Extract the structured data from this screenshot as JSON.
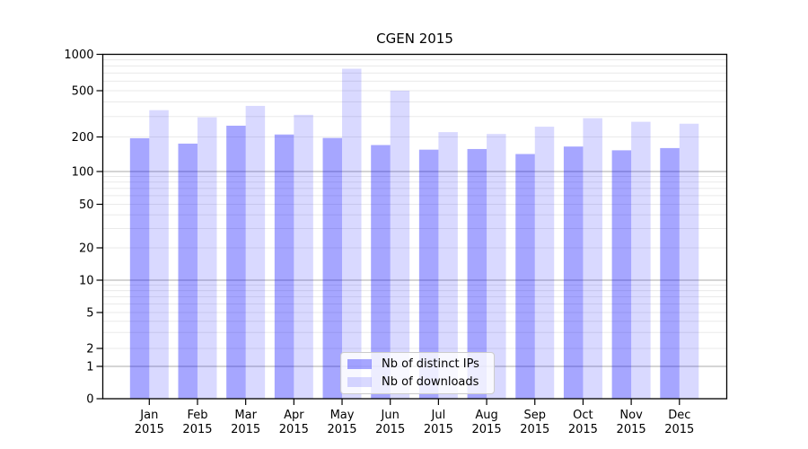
{
  "chart_data": {
    "type": "bar",
    "title": "CGEN 2015",
    "categories": [
      "Jan",
      "Feb",
      "Mar",
      "Apr",
      "May",
      "Jun",
      "Jul",
      "Aug",
      "Sep",
      "Oct",
      "Nov",
      "Dec"
    ],
    "category_year": "2015",
    "series": [
      {
        "name": "Nb of distinct IPs",
        "color": "rgba(0,0,255,0.35)",
        "values": [
          195,
          175,
          250,
          210,
          196,
          170,
          155,
          157,
          142,
          165,
          153,
          160
        ]
      },
      {
        "name": "Nb of downloads",
        "color": "rgba(0,0,255,0.15)",
        "values": [
          340,
          295,
          370,
          310,
          760,
          500,
          220,
          212,
          245,
          290,
          270,
          260
        ]
      }
    ],
    "yscale": "symlog",
    "ylim": [
      0,
      1000
    ],
    "yticks": [
      0,
      1,
      2,
      5,
      10,
      20,
      50,
      100,
      200,
      500,
      1000
    ],
    "grid": "both",
    "legend_position": "lower-center",
    "colors": {
      "major_grid": "#ababab",
      "minor_grid": "#eaeaea",
      "spine": "#000000",
      "text": "#000000"
    }
  }
}
